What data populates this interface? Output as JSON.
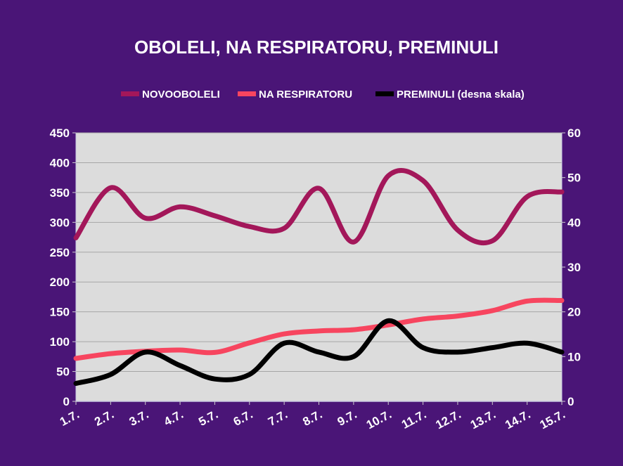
{
  "colors": {
    "background": "#4a1577",
    "plot_area": "#dcdcdc",
    "grid": "#a6a6a6"
  },
  "chart_data": {
    "type": "line",
    "smoothed": true,
    "title": "OBOLELI, NA RESPIRATORU, PREMINULI",
    "categories": [
      "1.7.",
      "2.7.",
      "3.7.",
      "4.7.",
      "5.7.",
      "6.7.",
      "7.7.",
      "8.7.",
      "9.7.",
      "10.7.",
      "11.7.",
      "12.7.",
      "13.7.",
      "14.7.",
      "15.7."
    ],
    "y_left": {
      "range": [
        0,
        450
      ],
      "ticks": [
        0,
        50,
        100,
        150,
        200,
        250,
        300,
        350,
        400,
        450
      ]
    },
    "y_right": {
      "range": [
        0,
        60
      ],
      "ticks": [
        0,
        10,
        20,
        30,
        40,
        50,
        60
      ]
    },
    "grid": true,
    "legend_position": "top",
    "series": [
      {
        "name": "NOVOOBOLELI",
        "axis": "left",
        "color": "#a3175a",
        "values": [
          274,
          358,
          307,
          326,
          311,
          293,
          290,
          357,
          267,
          378,
          370,
          287,
          269,
          343,
          351
        ]
      },
      {
        "name": "NA RESPIRATORU",
        "axis": "left",
        "color": "#f7455f",
        "values": [
          72,
          80,
          84,
          86,
          82,
          98,
          113,
          118,
          120,
          128,
          138,
          143,
          152,
          168,
          169
        ]
      },
      {
        "name": "PREMINULI (desna skala)",
        "axis": "right",
        "color": "#000000",
        "values": [
          4,
          6,
          11,
          8,
          5,
          6,
          13,
          11,
          10,
          18,
          12,
          11,
          12,
          13,
          11
        ]
      }
    ]
  }
}
